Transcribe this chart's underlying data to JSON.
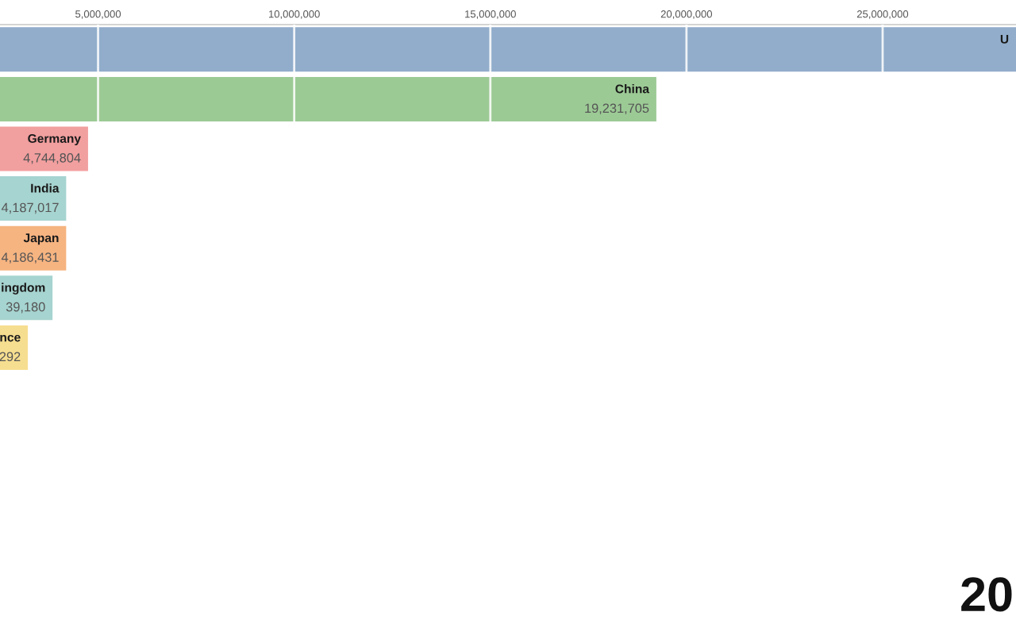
{
  "chart_data": {
    "type": "bar",
    "orientation": "horizontal",
    "categories": [
      "U",
      "China",
      "Germany",
      "India",
      "Japan",
      "ingdom",
      "nce"
    ],
    "values": [
      28400000,
      19231705,
      4744804,
      4187017,
      4186431,
      3839180,
      3210000
    ],
    "colors": [
      "#91adcb",
      "#9cca95",
      "#f29f9f",
      "#a6d4d0",
      "#f6b481",
      "#a6d4d0",
      "#f6de90"
    ],
    "value_labels": [
      null,
      "19,231,705",
      "4,744,804",
      "4,187,017",
      "4,186,431",
      null,
      null
    ],
    "xlim": [
      2500000,
      28400000
    ],
    "xticks": [
      {
        "value": 5000000,
        "label": "5,000,000"
      },
      {
        "value": 10000000,
        "label": "10,000,000"
      },
      {
        "value": 15000000,
        "label": "15,000,000"
      },
      {
        "value": 20000000,
        "label": "20,000,000"
      },
      {
        "value": 25000000,
        "label": "25,000,000"
      }
    ],
    "grid": "x",
    "tick_labels": "x",
    "annotations": [
      "20",
      {
        "text": "39,180",
        "x": 3839180,
        "y": "ingdom"
      },
      {
        "text": "292",
        "x": 3210000,
        "y": "nce"
      }
    ]
  }
}
